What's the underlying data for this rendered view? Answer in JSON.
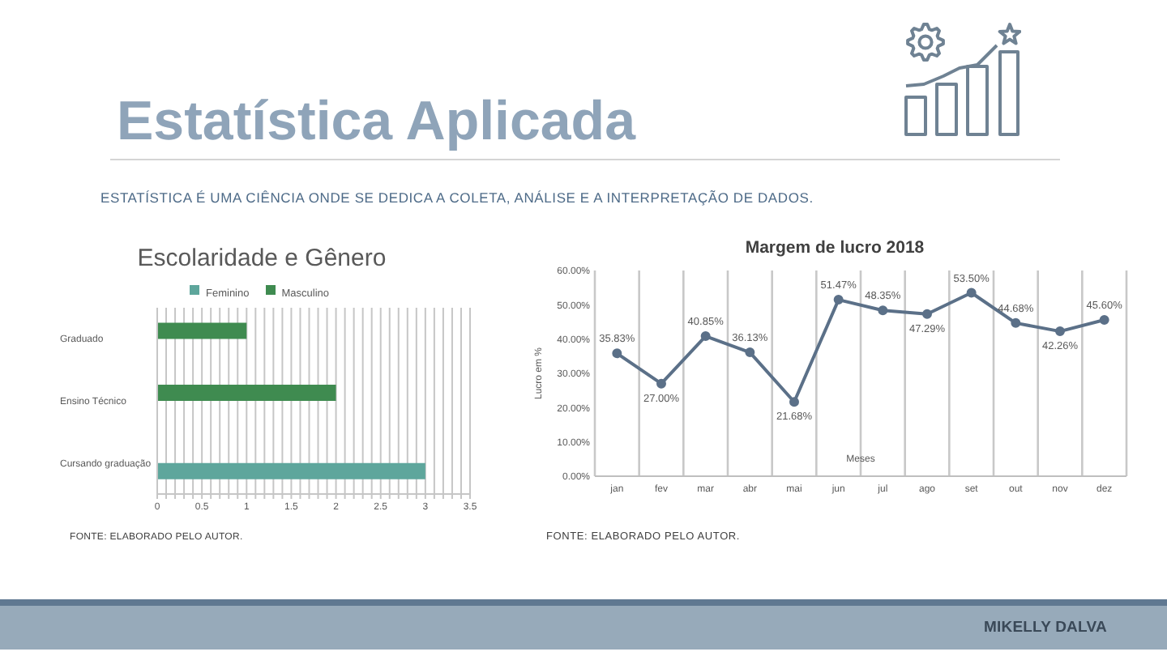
{
  "chart_data": [
    {
      "type": "other",
      "title": "Estatística Aplicada",
      "subtitle": "ESTATÍSTICA É UMA CIÊNCIA ONDE SE DEDICA A COLETA, ANÁLISE E A INTERPRETAÇÃO DE DADOS."
    },
    {
      "type": "bar",
      "orientation": "horizontal",
      "title": "Escolaridade e Gênero",
      "categories": [
        "Graduado",
        "Ensino Técnico",
        "Cursando graduação"
      ],
      "series": [
        {
          "name": "Feminino",
          "color": "#5ea69c",
          "values": [
            null,
            null,
            3
          ]
        },
        {
          "name": "Masculino",
          "color": "#3f8b50",
          "values": [
            1,
            2,
            null
          ]
        }
      ],
      "xlim": [
        0,
        3.5
      ],
      "xticks": [
        0,
        {
          "value": 0.1,
          "label": null
        },
        {
          "value": 0.2,
          "label": null
        },
        {
          "value": 0.3,
          "label": null
        },
        {
          "value": 0.4,
          "label": null
        },
        0.5,
        {
          "value": 0.6,
          "label": null
        },
        {
          "value": 0.7,
          "label": null
        },
        {
          "value": 0.8,
          "label": null
        },
        {
          "value": 0.9,
          "label": null
        },
        1,
        {
          "value": 1.1,
          "label": null
        },
        {
          "value": 1.2,
          "label": null
        },
        {
          "value": 1.3,
          "label": null
        },
        {
          "value": 1.4,
          "label": null
        },
        1.5,
        {
          "value": 1.6,
          "label": null
        },
        {
          "value": 1.7,
          "label": null
        },
        {
          "value": 1.8,
          "label": null
        },
        {
          "value": 1.9,
          "label": null
        },
        2,
        {
          "value": 2.1,
          "label": null
        },
        {
          "value": 2.2,
          "label": null
        },
        {
          "value": 2.3,
          "label": null
        },
        {
          "value": 2.4,
          "label": null
        },
        2.5,
        {
          "value": 2.6,
          "label": null
        },
        {
          "value": 2.7,
          "label": null
        },
        {
          "value": 2.8,
          "label": null
        },
        {
          "value": 2.9,
          "label": null
        },
        3,
        {
          "value": 3.1,
          "label": null
        },
        {
          "value": 3.2,
          "label": null
        },
        {
          "value": 3.3,
          "label": null
        },
        {
          "value": 3.4,
          "label": null
        },
        3.5
      ],
      "grid": "x",
      "legend": "top",
      "annotations": [
        "FONTE: ELABORADO PELO AUTOR."
      ]
    },
    {
      "type": "line",
      "title": "Margem de lucro 2018",
      "xlabel": "Meses",
      "ylabel": "Lucro em %",
      "categories": [
        "jan",
        "fev",
        "mar",
        "abr",
        "mai",
        "jun",
        "jul",
        "ago",
        "set",
        "out",
        "nov",
        "dez"
      ],
      "values": [
        35.83,
        27.0,
        40.85,
        36.13,
        21.68,
        51.47,
        48.35,
        47.29,
        53.5,
        44.68,
        42.26,
        45.6
      ],
      "color": "#5b7088",
      "value_labels": [
        "35.83%",
        "27.00%",
        "40.85%",
        "36.13%",
        "21.68%",
        "51.47%",
        "48.35%",
        "47.29%",
        "53.50%",
        "44.68%",
        "42.26%",
        "45.60%"
      ],
      "ylim": [
        0,
        60
      ],
      "yticks": [
        {
          "value": 0,
          "label": "0.00%"
        },
        {
          "value": 10,
          "label": "10.00%"
        },
        {
          "value": 20,
          "label": "20.00%"
        },
        {
          "value": 30,
          "label": "30.00%"
        },
        {
          "value": 40,
          "label": "40.00%"
        },
        {
          "value": 50,
          "label": "50.00%"
        },
        {
          "value": 60,
          "label": "60.00%"
        }
      ],
      "grid": "x",
      "marker": "circle",
      "annotations": [
        "FONTE: ELABORADO PELO AUTOR."
      ]
    },
    {
      "type": "other",
      "annotations": [
        "MIKELLY DALVA"
      ]
    }
  ]
}
